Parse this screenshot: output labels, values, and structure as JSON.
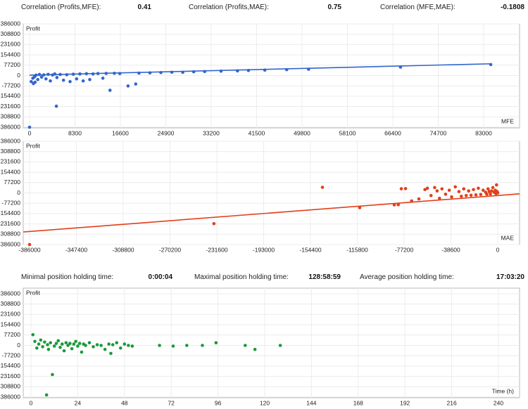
{
  "stats_top": [
    {
      "label": "Correlation (Profits,MFE):",
      "value": "0.41"
    },
    {
      "label": "Correlation (Profits,MAE):",
      "value": "0.75"
    },
    {
      "label": "Correlation (MFE,MAE):",
      "value": "-0.1808"
    }
  ],
  "stats_middle": [
    {
      "label": "Minimal position holding time:",
      "value": "0:00:04"
    },
    {
      "label": "Maximal position holding time:",
      "value": "128:58:59"
    },
    {
      "label": "Average position holding time:",
      "value": "17:03:20"
    }
  ],
  "chart_data": [
    {
      "type": "scatter",
      "y_label": "Profit",
      "x_label": "MFE",
      "color": "#3366cc",
      "grid": true,
      "xlim": [
        0,
        83000
      ],
      "xticks": [
        0,
        8300,
        16600,
        24900,
        33200,
        41500,
        49800,
        58100,
        66400,
        74700,
        83000
      ],
      "ylim": [
        -386000,
        386000
      ],
      "yticks": [
        386000,
        308800,
        231600,
        154400,
        77200,
        0,
        -77200,
        -154400,
        -231600,
        -308800,
        -386000
      ],
      "x": [
        0,
        4900,
        300,
        600,
        700,
        900,
        1000,
        1200,
        1500,
        1800,
        2200,
        2600,
        3000,
        3400,
        3800,
        4200,
        4600,
        5000,
        5600,
        6200,
        6800,
        7400,
        8000,
        8600,
        9200,
        9800,
        10400,
        11000,
        11600,
        12500,
        13400,
        14000,
        14700,
        15500,
        16500,
        18000,
        19400,
        20000,
        22000,
        24000,
        26000,
        28000,
        30000,
        32000,
        35000,
        38000,
        40000,
        43000,
        47000,
        51000,
        67800,
        84300
      ],
      "y": [
        -386000,
        -229000,
        -45000,
        -20000,
        -60000,
        -10000,
        -50000,
        3000,
        -30000,
        8000,
        -12000,
        5000,
        -25000,
        9000,
        -40000,
        4000,
        12000,
        -15000,
        8000,
        -35000,
        6000,
        -45000,
        10000,
        -25000,
        12000,
        -40000,
        14000,
        -30000,
        12000,
        15000,
        -20000,
        16000,
        -110000,
        17000,
        15000,
        -78000,
        -63000,
        18000,
        20000,
        22000,
        25000,
        24000,
        28000,
        30000,
        33000,
        35000,
        38000,
        41000,
        44000,
        47000,
        63000,
        82000
      ],
      "trend": {
        "x": [
          0,
          84300
        ],
        "y": [
          3000,
          88000
        ]
      }
    },
    {
      "type": "scatter",
      "y_label": "Profit",
      "x_label": "MAE",
      "color": "#e0401a",
      "grid": true,
      "xlim": [
        -386000,
        0
      ],
      "xticks": [
        -386000,
        -347400,
        -308800,
        -270200,
        -231600,
        -193000,
        -154400,
        -115800,
        -77200,
        -38600,
        0
      ],
      "ylim": [
        -386000,
        386000
      ],
      "yticks": [
        386000,
        308800,
        231600,
        154400,
        77200,
        0,
        -77200,
        -154400,
        -231600,
        -308800,
        -386000
      ],
      "x": [
        -386000,
        -234000,
        -144500,
        -113800,
        -85300,
        -82000,
        -79500,
        -76000,
        -71000,
        -65000,
        -60000,
        -58000,
        -55000,
        -52000,
        -50000,
        -48000,
        -46000,
        -43000,
        -40000,
        -38000,
        -35000,
        -32000,
        -30000,
        -28000,
        -26000,
        -24000,
        -22000,
        -20000,
        -18000,
        -16000,
        -14000,
        -12000,
        -10000,
        -9000,
        -8000,
        -7000,
        -6000,
        -5000,
        -4000,
        -3000,
        -2000,
        -1500,
        -1000,
        -500,
        0
      ],
      "y": [
        -386000,
        -230000,
        42000,
        -110000,
        -89000,
        -88000,
        31000,
        32000,
        -60000,
        -45000,
        25000,
        35000,
        -20000,
        40000,
        15000,
        -40000,
        30000,
        -10000,
        20000,
        -30000,
        45000,
        10000,
        -25000,
        30000,
        -20000,
        15000,
        -18000,
        25000,
        -15000,
        35000,
        -12000,
        20000,
        5000,
        -10000,
        30000,
        10000,
        -8000,
        15000,
        40000,
        5000,
        20000,
        -5000,
        60000,
        10000,
        0
      ],
      "trend": {
        "x": [
          -391000,
          18000
        ],
        "y": [
          -292000,
          -7000
        ]
      }
    },
    {
      "type": "scatter",
      "y_label": "Profit",
      "x_label": "Time (h)",
      "color": "#1a9a3a",
      "grid": true,
      "xlim": [
        0,
        240
      ],
      "xticks": [
        0,
        24,
        48,
        72,
        96,
        120,
        144,
        168,
        192,
        216,
        240
      ],
      "ylim": [
        -386000,
        386000
      ],
      "yticks": [
        386000,
        308800,
        231600,
        154400,
        77200,
        0,
        -77200,
        -154400,
        -231600,
        -308800,
        -386000
      ],
      "x": [
        1,
        2,
        3,
        4,
        5,
        6,
        7,
        8,
        8.5,
        9,
        10,
        11,
        12,
        13,
        14,
        15,
        16,
        17,
        18,
        19,
        20,
        21,
        22,
        23,
        24,
        25,
        26,
        27,
        28,
        30,
        32,
        34,
        36,
        38,
        40,
        41,
        42,
        44,
        46,
        48,
        50,
        52,
        66,
        73,
        80,
        88,
        95,
        110,
        115,
        128
      ],
      "y": [
        80000,
        30000,
        -20000,
        10000,
        40000,
        -10000,
        25000,
        -370000,
        5000,
        -30000,
        20000,
        -218000,
        -5000,
        15000,
        35000,
        -15000,
        10000,
        -40000,
        20000,
        0,
        15000,
        -25000,
        10000,
        30000,
        -5000,
        15000,
        -50000,
        10000,
        0,
        20000,
        -10000,
        5000,
        0,
        -30000,
        10000,
        -60000,
        5000,
        20000,
        -20000,
        10000,
        0,
        -5000,
        0,
        -5000,
        0,
        0,
        20000,
        0,
        -30000,
        0
      ]
    }
  ]
}
